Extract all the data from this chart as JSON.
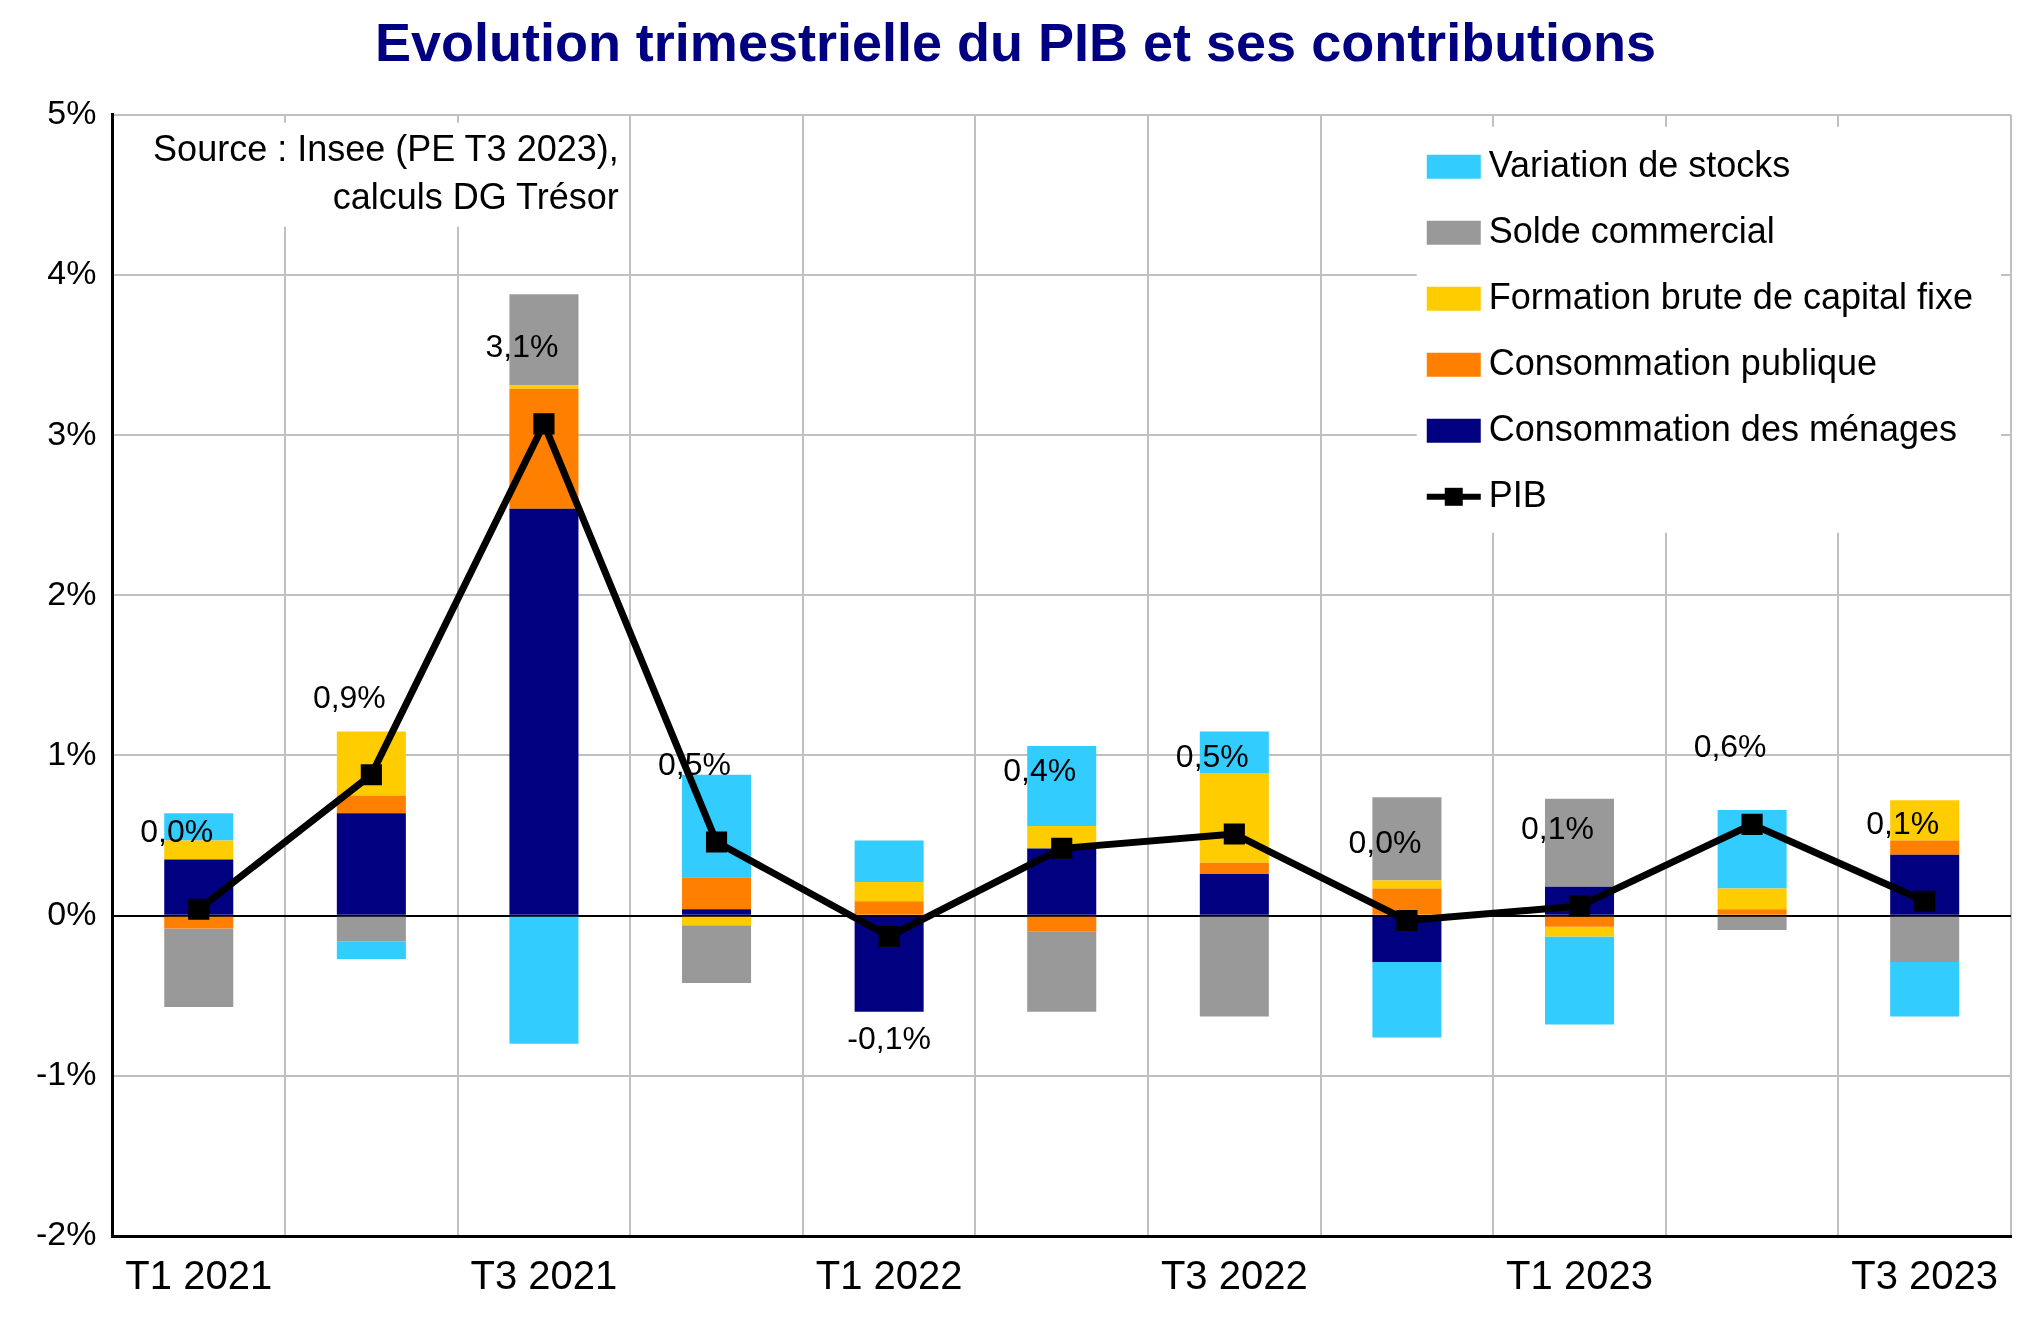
{
  "chart_data": {
    "type": "bar",
    "title": "Evolution trimestrielle du PIB et ses contributions",
    "stacked": true,
    "categories": [
      "T1 2021",
      null,
      "T3 2021",
      null,
      "T1 2022",
      null,
      "T3 2022",
      null,
      "T1 2023",
      null,
      "T3 2023"
    ],
    "series": [
      {
        "name": "Consommation des ménages",
        "color": "#000080",
        "values": [
          0.35,
          0.64,
          2.54,
          0.04,
          -0.6,
          0.42,
          0.26,
          -0.29,
          0.18,
          0,
          0.38
        ]
      },
      {
        "name": "Consommation publique",
        "color": "#ff7f00",
        "values": [
          -0.08,
          0.11,
          0.75,
          0.2,
          0.09,
          -0.1,
          0.07,
          0.17,
          -0.07,
          0.04,
          0.09
        ]
      },
      {
        "name": "Formation brute de capital fixe",
        "color": "#ffcc00",
        "values": [
          0.12,
          0.4,
          0.02,
          -0.06,
          0.12,
          0.14,
          0.56,
          0.05,
          -0.06,
          0.13,
          0.25
        ]
      },
      {
        "name": "Solde commercial",
        "color": "#999999",
        "values": [
          -0.49,
          -0.16,
          0.57,
          -0.36,
          0,
          -0.5,
          -0.63,
          0.52,
          0.55,
          -0.09,
          -0.29
        ]
      },
      {
        "name": "Variation de stocks",
        "color": "#33ccff",
        "values": [
          0.17,
          -0.11,
          -0.8,
          0.64,
          0.26,
          0.5,
          0.26,
          -0.47,
          -0.55,
          0.49,
          -0.34
        ]
      },
      {
        "name": "PIB",
        "type": "line",
        "color": "#000000",
        "marker": "square",
        "values": [
          0.04,
          0.88,
          3.07,
          0.46,
          -0.13,
          0.42,
          0.51,
          -0.03,
          0.06,
          0.57,
          0.09
        ],
        "value_labels": [
          "0,0%",
          "0,9%",
          "3,1%",
          "0,5%",
          "-0,1%",
          "0,4%",
          "0,5%",
          "0,0%",
          "0,1%",
          "0,6%",
          "0,1%"
        ]
      }
    ],
    "ylim": [
      -2,
      5
    ],
    "yticks": [
      {
        "value": -2,
        "label": "-2%"
      },
      {
        "value": -1,
        "label": "-1%"
      },
      {
        "value": 0,
        "label": "0%"
      },
      {
        "value": 1,
        "label": "1%"
      },
      {
        "value": 2,
        "label": "2%"
      },
      {
        "value": 3,
        "label": "3%"
      },
      {
        "value": 4,
        "label": "4%"
      },
      {
        "value": 5,
        "label": "5%"
      }
    ],
    "grid": true,
    "legend": "top right",
    "annotations": [
      "Source : Insee (PE T3 2023),\ncalculs DG Trésor"
    ]
  }
}
